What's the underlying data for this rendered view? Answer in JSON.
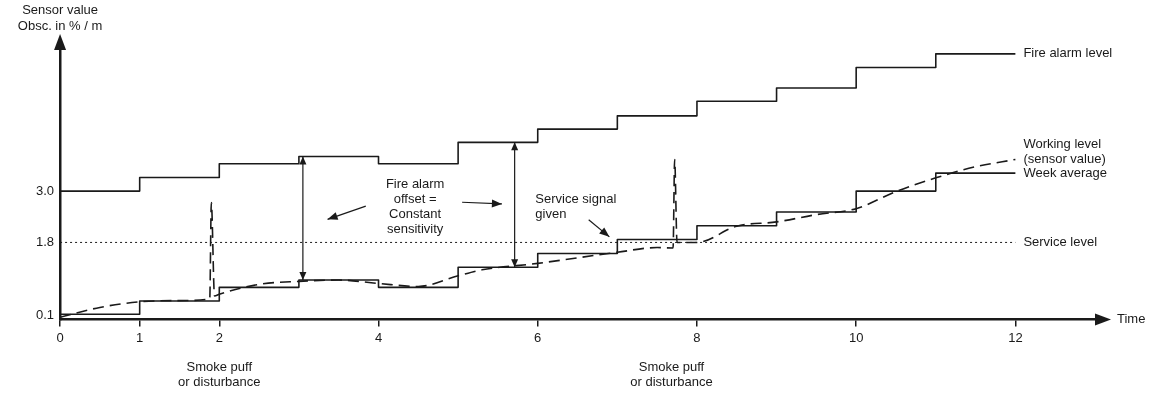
{
  "chart_data": {
    "type": "step",
    "xlabel": "Time",
    "ylabel": "Sensor value\nObsc. in % / m",
    "xlim": [
      0,
      13
    ],
    "xticks": [
      0,
      1,
      2,
      4,
      6,
      8,
      10,
      12
    ],
    "ylim": [
      0,
      6.3
    ],
    "yticks": [
      0.1,
      1.8,
      {
        "value": 3,
        "label": "3.0"
      }
    ],
    "grid": false,
    "legend": false,
    "series": [
      {
        "name": "Fire alarm level",
        "color": "#1a1a1a",
        "line_style": "solid",
        "x": [
          0,
          1,
          2,
          3,
          4,
          5,
          6,
          7,
          8,
          9,
          10,
          11,
          12
        ],
        "values": [
          3.0,
          3.32,
          3.64,
          3.81,
          3.64,
          4.14,
          4.45,
          4.76,
          5.1,
          5.41,
          5.89,
          6.21,
          6.21
        ]
      },
      {
        "name": "Working level\n(sensor value)",
        "type": "line",
        "color": "#1a1a1a",
        "line_style": "dashed",
        "x": [
          0,
          0.5,
          1,
          1.5,
          1.88,
          1.9,
          1.94,
          2,
          2.5,
          3,
          3.5,
          4,
          4.5,
          5,
          5.3,
          6,
          7,
          7.5,
          7.7,
          7.72,
          7.75,
          8,
          8.5,
          9,
          9.5,
          10,
          10.5,
          11,
          11.5,
          12
        ],
        "values": [
          0.05,
          0.28,
          0.41,
          0.44,
          0.48,
          2.73,
          0.55,
          0.59,
          0.82,
          0.89,
          0.92,
          0.84,
          0.77,
          1.02,
          1.16,
          1.31,
          1.57,
          1.68,
          1.67,
          3.74,
          1.8,
          1.8,
          2.18,
          2.28,
          2.45,
          2.59,
          2.99,
          3.31,
          3.57,
          3.74
        ]
      },
      {
        "name": "Week average",
        "color": "#1a1a1a",
        "line_style": "solid",
        "x": [
          0,
          1,
          2,
          3,
          4,
          5,
          6,
          7,
          8,
          9,
          10,
          11,
          12
        ],
        "values": [
          0.12,
          0.43,
          0.75,
          0.92,
          0.75,
          1.22,
          1.54,
          1.87,
          2.19,
          2.51,
          3.0,
          3.42,
          3.42
        ]
      }
    ],
    "ref_lines": [
      {
        "axis": "y",
        "value": 1.8,
        "label": "Service level",
        "line_style": "dotted",
        "color": "#1a1a1a"
      }
    ],
    "annotations": [
      "Fire alarm\noffset =\nConstant\nsensitivity",
      "Service signal\ngiven",
      "Smoke puff\nor disturbance",
      "Smoke puff\nor disturbance"
    ]
  }
}
